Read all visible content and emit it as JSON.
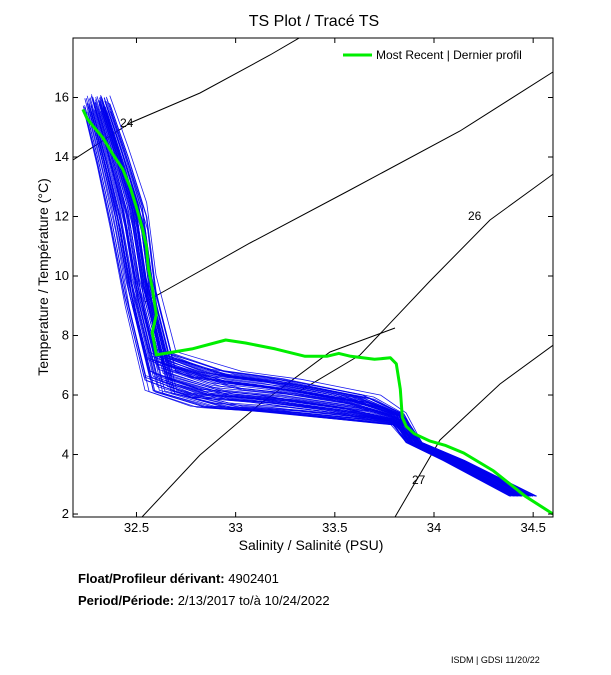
{
  "chart_data": {
    "type": "line",
    "title": "TS Plot / Tracé TS",
    "xlabel": "Salinity / Salinité (PSU)",
    "ylabel": "Temperature / Température (°C)",
    "xlim": [
      32.18,
      34.6
    ],
    "ylim": [
      1.9,
      18.0
    ],
    "x_ticks": [
      32.5,
      33,
      33.5,
      34,
      34.5
    ],
    "y_ticks": [
      2,
      4,
      6,
      8,
      10,
      12,
      14,
      16
    ],
    "legend": {
      "label": "Most Recent | Dernier profil",
      "placement": "top-right"
    },
    "grid": false,
    "colors": {
      "historical": "#0000ee",
      "most_recent": "#00ee00",
      "isopycnal": "#000000"
    },
    "isopycnal_labels": [
      "24",
      "26",
      "27"
    ],
    "series": [
      {
        "name": "Most Recent | Dernier profil",
        "x": [
          34.6,
          34.46,
          34.3,
          34.15,
          34.06,
          33.98,
          33.9,
          33.86,
          33.84,
          33.83,
          33.81,
          33.78,
          33.7,
          33.58,
          33.52,
          33.46,
          33.35,
          33.2,
          33.05,
          32.95,
          32.78,
          32.6,
          32.58,
          32.6,
          32.58,
          32.56,
          32.55,
          32.53,
          32.5,
          32.47,
          32.43,
          32.38,
          32.33,
          32.28,
          32.25,
          32.23
        ],
        "y": [
          2.0,
          2.6,
          3.45,
          4.05,
          4.3,
          4.45,
          4.7,
          4.95,
          5.25,
          6.2,
          7.05,
          7.25,
          7.2,
          7.3,
          7.4,
          7.3,
          7.3,
          7.55,
          7.75,
          7.85,
          7.55,
          7.35,
          8.1,
          8.7,
          9.6,
          10.25,
          11.0,
          11.6,
          12.3,
          12.95,
          13.6,
          14.1,
          14.65,
          15.05,
          15.3,
          15.6
        ]
      }
    ]
  },
  "info": {
    "float_label": "Float/Profileur dérivant:",
    "float_id": "4902401",
    "period_label": "Period/Période:",
    "period_start": "2/13/2017",
    "period_to": "to/à",
    "period_end": "10/24/2022"
  },
  "credit": "ISDM | GDSI  11/20/22"
}
